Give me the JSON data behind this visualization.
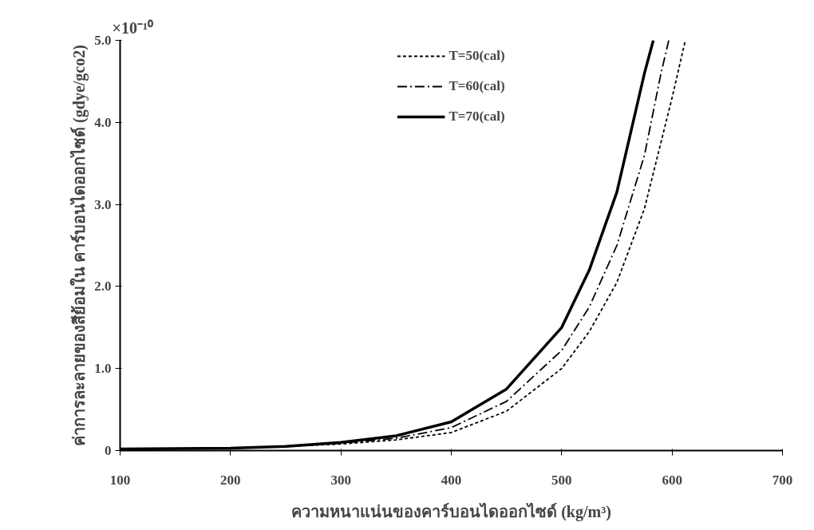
{
  "chart_data": {
    "type": "line",
    "xlabel": "ความหนาแน่นของคาร์บอนไดออกไซด์ (kg/m³)",
    "ylabel": "ค่าการละลายของสีย้อมใน คาร์บอนไดออกไซด์ (gdye/gco2)",
    "annotations": [
      "×10⁻¹⁰"
    ],
    "xlim": [
      100,
      700
    ],
    "xticks": [
      100,
      200,
      300,
      400,
      500,
      600,
      700
    ],
    "ylim": [
      0,
      5.0
    ],
    "yticks": [
      {
        "value": 0,
        "label": "0"
      },
      {
        "value": 1,
        "label": "1.0"
      },
      {
        "value": 2,
        "label": "2.0"
      },
      {
        "value": 3,
        "label": "3.0"
      },
      {
        "value": 4,
        "label": "4.0"
      },
      {
        "value": 5,
        "label": "5.0"
      }
    ],
    "grid": false,
    "legend": "top",
    "marker": "none",
    "series": [
      {
        "name": "T=50(cal)",
        "color": "#000000",
        "line_style": "dashed",
        "x": [
          100,
          200,
          250,
          300,
          350,
          400,
          450,
          500,
          525,
          550,
          575,
          600,
          612
        ],
        "values": [
          0.02,
          0.03,
          0.05,
          0.08,
          0.13,
          0.22,
          0.48,
          1.0,
          1.45,
          2.05,
          2.95,
          4.3,
          5.0
        ]
      },
      {
        "name": "T=60(cal)",
        "color": "#000000",
        "line_style": "dashdot",
        "x": [
          100,
          200,
          250,
          300,
          350,
          400,
          450,
          500,
          525,
          550,
          575,
          590,
          597
        ],
        "values": [
          0.02,
          0.03,
          0.05,
          0.09,
          0.15,
          0.28,
          0.6,
          1.22,
          1.75,
          2.5,
          3.6,
          4.6,
          5.0
        ]
      },
      {
        "name": "T=70(cal)",
        "color": "#000000",
        "line_style": "solid",
        "x": [
          100,
          200,
          250,
          300,
          350,
          400,
          450,
          500,
          525,
          550,
          575,
          583
        ],
        "values": [
          0.02,
          0.03,
          0.05,
          0.1,
          0.18,
          0.35,
          0.75,
          1.5,
          2.2,
          3.15,
          4.6,
          5.0
        ]
      }
    ]
  }
}
